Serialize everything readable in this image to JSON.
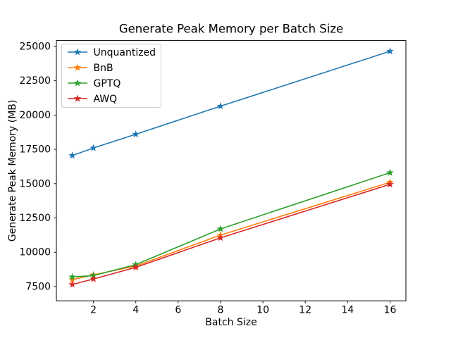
{
  "figure": {
    "background": "#ffffff"
  },
  "chart_data": {
    "type": "line",
    "title": "Generate Peak Memory per Batch Size",
    "xlabel": "Batch Size",
    "ylabel": "Generate Peak Memory (MB)",
    "x": [
      1,
      2,
      4,
      8,
      16
    ],
    "series": [
      {
        "name": "Unquantized",
        "color": "#1f77b4",
        "marker": "star",
        "values": [
          17050,
          17600,
          18600,
          20650,
          24650
        ]
      },
      {
        "name": "BnB",
        "color": "#ff7f0e",
        "marker": "star",
        "values": [
          8000,
          8350,
          9000,
          11250,
          15100
        ]
      },
      {
        "name": "GPTQ",
        "color": "#2ca02c",
        "marker": "star",
        "values": [
          8200,
          8300,
          9100,
          11700,
          15800
        ]
      },
      {
        "name": "AWQ",
        "color": "#d62728",
        "marker": "star",
        "values": [
          7650,
          8050,
          8900,
          11050,
          14950
        ]
      }
    ],
    "xlim": [
      0.25,
      16.75
    ],
    "ylim": [
      6460,
      25430
    ],
    "xticks": [
      2,
      4,
      6,
      8,
      10,
      12,
      14,
      16
    ],
    "yticks": [
      7500,
      10000,
      12500,
      15000,
      17500,
      20000,
      22500,
      25000
    ],
    "grid": false,
    "legend": {
      "position": "upper-left",
      "frame": true,
      "border_color": "#cccccc",
      "entries": [
        "Unquantized",
        "BnB",
        "GPTQ",
        "AWQ"
      ]
    },
    "axis_color": "#000000",
    "tick_label_color": "#000000"
  }
}
